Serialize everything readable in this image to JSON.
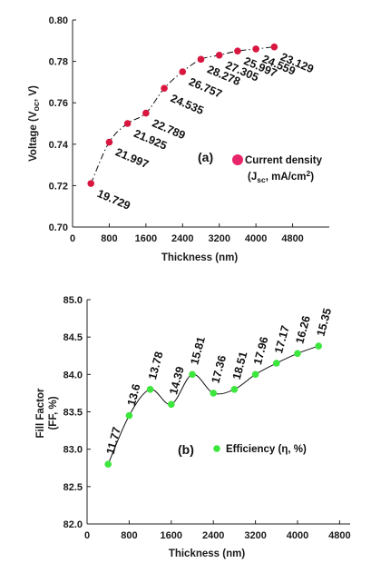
{
  "chart_data": [
    {
      "type": "scatter",
      "panel_label": "(a)",
      "xlabel": "Thickness  (nm)",
      "ylabel_main": "Voltage (V",
      "ylabel_sub": "oc",
      "ylabel_end": ", V)",
      "xlim": [
        0,
        5600
      ],
      "ylim": [
        0.7,
        0.8
      ],
      "x_ticks": [
        0,
        800,
        1600,
        2400,
        3200,
        4000,
        4800
      ],
      "y_ticks": [
        "0.70",
        "0.72",
        "0.74",
        "0.76",
        "0.78",
        "0.80"
      ],
      "legend": {
        "line1": "Current density",
        "line2_pre": "(J",
        "line2_sub": "sc",
        "line2_post": ", mA/cm",
        "line2_sup": "2",
        "line2_end": ")"
      },
      "marker_color": "#d8163f",
      "legend_color": "#e8256a",
      "series": [
        {
          "x": [
            400,
            800,
            1200,
            1600,
            2000,
            2400,
            2800,
            3200,
            3600,
            4000,
            4400
          ],
          "values": [
            0.721,
            0.741,
            0.75,
            0.755,
            0.767,
            0.775,
            0.781,
            0.783,
            0.785,
            0.786,
            0.787
          ],
          "labels": [
            "19.729",
            "21.997",
            "21.925",
            "22.789",
            "24.535",
            "26.757",
            "28.278",
            "27.305",
            "25.997",
            "24.559",
            "23.129"
          ]
        }
      ]
    },
    {
      "type": "scatter",
      "panel_label": "(b)",
      "xlabel": "Thickness  (nm)",
      "ylabel_main": "Fill Factor",
      "ylabel_second": "(FF, %)",
      "xlim": [
        0,
        5000
      ],
      "ylim": [
        82.0,
        85.0
      ],
      "x_ticks": [
        0,
        800,
        1600,
        2400,
        3200,
        4000,
        4800
      ],
      "y_ticks": [
        "82.0",
        "82.5",
        "83.0",
        "83.5",
        "84.0",
        "84.5",
        "85.0"
      ],
      "legend": {
        "label": "Efficiency  (η, %)"
      },
      "marker_color": "#3ce63c",
      "series": [
        {
          "x": [
            400,
            800,
            1200,
            1600,
            2000,
            2400,
            2800,
            3200,
            3600,
            4000,
            4400
          ],
          "values": [
            82.8,
            83.45,
            83.8,
            83.6,
            84.0,
            83.75,
            83.8,
            84.0,
            84.15,
            84.28,
            84.38
          ],
          "labels": [
            "11.77",
            "13.6",
            "13.78",
            "14.39",
            "15.81",
            "17.36",
            "18.51",
            "17.96",
            "17.17",
            "16.26",
            "15.35"
          ]
        }
      ]
    }
  ]
}
